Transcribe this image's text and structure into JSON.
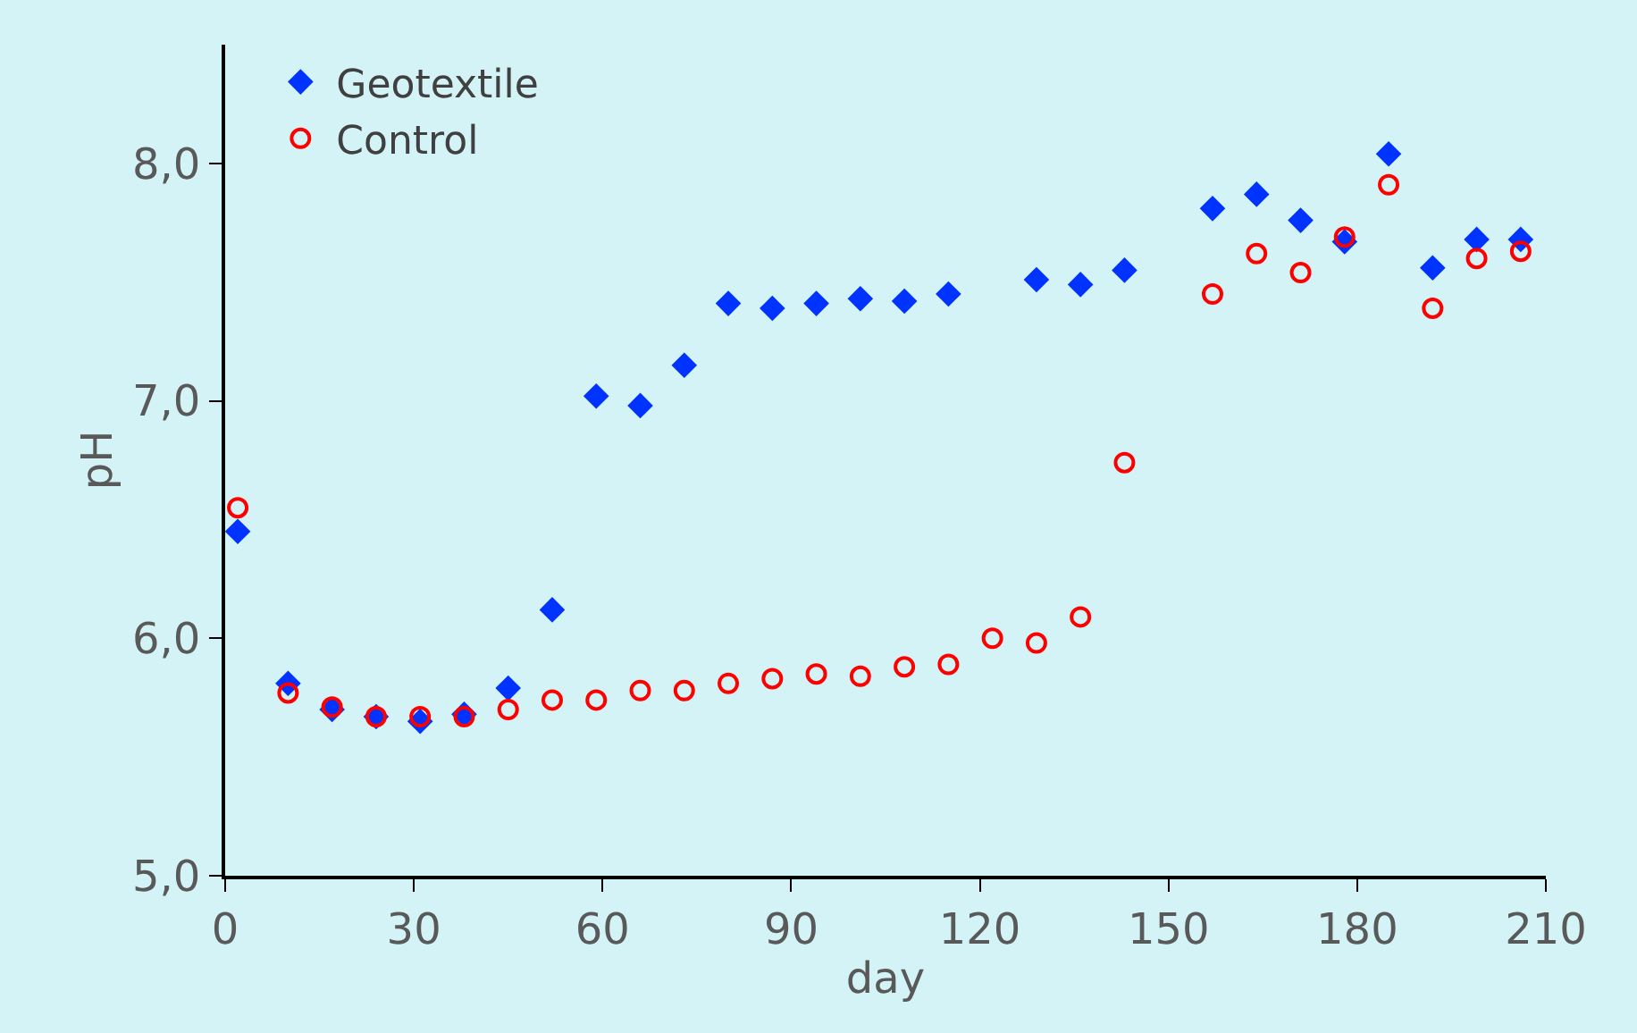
{
  "chart_data": {
    "type": "scatter",
    "xlabel": "day",
    "ylabel": "pH",
    "xlim": [
      0,
      210
    ],
    "xticks": [
      0,
      30,
      60,
      90,
      120,
      150,
      180,
      210
    ],
    "ylim": [
      5,
      8.5
    ],
    "yticks": [
      {
        "value": 5,
        "label": "5,0"
      },
      {
        "value": 6,
        "label": "6,0"
      },
      {
        "value": 7,
        "label": "7,0"
      },
      {
        "value": 8,
        "label": "8,0"
      }
    ],
    "grid": false,
    "legend": "top left",
    "series": [
      {
        "name": "Geotextile",
        "color": "#0033ff",
        "marker": "diamond",
        "x": [
          2,
          10,
          17,
          24,
          31,
          38,
          45,
          52,
          59,
          66,
          73,
          80,
          87,
          94,
          101,
          108,
          115,
          129,
          136,
          143,
          157,
          164,
          171,
          178,
          185,
          192,
          199,
          206
        ],
        "values": [
          6.45,
          5.81,
          5.7,
          5.67,
          5.65,
          5.68,
          5.79,
          6.12,
          7.02,
          6.98,
          7.15,
          7.41,
          7.39,
          7.41,
          7.43,
          7.42,
          7.45,
          7.51,
          7.49,
          7.55,
          7.81,
          7.87,
          7.76,
          7.67,
          8.04,
          7.56,
          7.68,
          7.68
        ]
      },
      {
        "name": "Control",
        "color": "#ff0000",
        "marker": "circle",
        "x": [
          2,
          10,
          17,
          24,
          31,
          38,
          45,
          52,
          59,
          66,
          73,
          80,
          87,
          94,
          101,
          108,
          115,
          122,
          129,
          136,
          143,
          157,
          164,
          171,
          178,
          185,
          192,
          199,
          206
        ],
        "values": [
          6.55,
          5.77,
          5.71,
          5.67,
          5.67,
          5.67,
          5.7,
          5.74,
          5.74,
          5.78,
          5.78,
          5.81,
          5.83,
          5.85,
          5.84,
          5.88,
          5.89,
          6.0,
          5.98,
          6.09,
          6.74,
          7.45,
          7.62,
          7.54,
          7.69,
          7.91,
          7.39,
          7.6,
          7.63
        ]
      }
    ]
  }
}
